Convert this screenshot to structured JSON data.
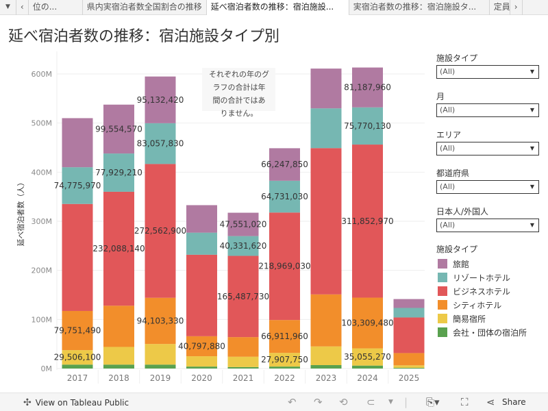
{
  "tabs": {
    "menu_icon": "▼",
    "prev": "‹",
    "next": "›",
    "items": [
      {
        "label": "位の..."
      },
      {
        "label": "県内実宿泊者数全国割合の推移"
      },
      {
        "label": "延べ宿泊者数の推移：宿泊施設..."
      },
      {
        "label": "実宿泊者数の推移：宿泊施設タ..."
      },
      {
        "label": "定員"
      }
    ]
  },
  "title": "延べ宿泊者数の推移：宿泊施設タイプ別",
  "note": [
    "それぞれの年のグ",
    "ラフの合計は年",
    "間の合計ではあ",
    "りません。"
  ],
  "filters": [
    {
      "label": "施設タイプ",
      "value": "(All)"
    },
    {
      "label": "月",
      "value": "(All)"
    },
    {
      "label": "エリア",
      "value": "(All)"
    },
    {
      "label": "都道府県",
      "value": "(All)"
    },
    {
      "label": "日本人/外国人",
      "value": "(All)"
    }
  ],
  "legend_title": "施設タイプ",
  "chart_data": {
    "type": "bar",
    "stacked": true,
    "ylabel": "延べ宿泊者数（人）",
    "xlabel": "",
    "ylim": [
      0,
      600000000
    ],
    "yticks": [
      {
        "v": 0,
        "label": "0M"
      },
      {
        "v": 100000000,
        "label": "100M"
      },
      {
        "v": 200000000,
        "label": "200M"
      },
      {
        "v": 300000000,
        "label": "300M"
      },
      {
        "v": 400000000,
        "label": "400M"
      },
      {
        "v": 500000000,
        "label": "500M"
      },
      {
        "v": 600000000,
        "label": "600M"
      }
    ],
    "categories": [
      "2017",
      "2018",
      "2019",
      "2020",
      "2021",
      "2022",
      "2023",
      "2024",
      "2025"
    ],
    "series": [
      {
        "name": "会社・団体の宿泊所",
        "color": "#59a14f",
        "values": [
          8000000,
          8000000,
          8000000,
          4000000,
          3000000,
          4000000,
          7000000,
          6000000,
          1500000
        ],
        "labels": [
          null,
          null,
          null,
          null,
          null,
          null,
          null,
          null,
          null
        ]
      },
      {
        "name": "簡易宿所",
        "color": "#edc948",
        "values": [
          29506100,
          36000000,
          42000000,
          21000000,
          21000000,
          27907750,
          38000000,
          35055270,
          5000000
        ],
        "labels": [
          "29,506,100",
          null,
          null,
          null,
          null,
          "27,907,750",
          null,
          "35,055,270",
          null
        ]
      },
      {
        "name": "シティホテル",
        "color": "#f28e2b",
        "values": [
          79751490,
          84000000,
          94103330,
          40797880,
          40000000,
          66911960,
          106000000,
          103309480,
          25000000
        ],
        "labels": [
          "79,751,490",
          null,
          "94,103,330",
          "40,797,880",
          null,
          "66,911,960",
          null,
          "103,309,480",
          null
        ]
      },
      {
        "name": "ビジネスホテル",
        "color": "#e15759",
        "values": [
          218000000,
          232088140,
          272562900,
          166000000,
          165487730,
          218969030,
          298000000,
          311852970,
          72500000
        ],
        "labels": [
          null,
          "232,088,140",
          "272,562,900",
          null,
          "165,487,730",
          "218,969,030",
          null,
          "311,852,970",
          null
        ]
      },
      {
        "name": "リゾートホテル",
        "color": "#76b7b2",
        "values": [
          74775970,
          77929210,
          83057830,
          45000000,
          40331620,
          64731030,
          81000000,
          75770130,
          19500000
        ],
        "labels": [
          "74,775,970",
          "77,929,210",
          "83,057,830",
          null,
          "40,331,620",
          "64,731,030",
          null,
          "75,770,130",
          null
        ]
      },
      {
        "name": "旅館",
        "color": "#b07aa1",
        "values": [
          100000000,
          99554570,
          95132420,
          56000000,
          47551020,
          66247850,
          81000000,
          81187960,
          18000000
        ],
        "labels": [
          null,
          "99,554,570",
          "95,132,420",
          null,
          "47,551,020",
          "66,247,850",
          null,
          "81,187,960",
          null
        ]
      }
    ]
  },
  "legend_order": [
    5,
    4,
    3,
    2,
    1,
    0
  ],
  "footer": {
    "view_label": "View on Tableau Public",
    "share_label": "Share"
  }
}
